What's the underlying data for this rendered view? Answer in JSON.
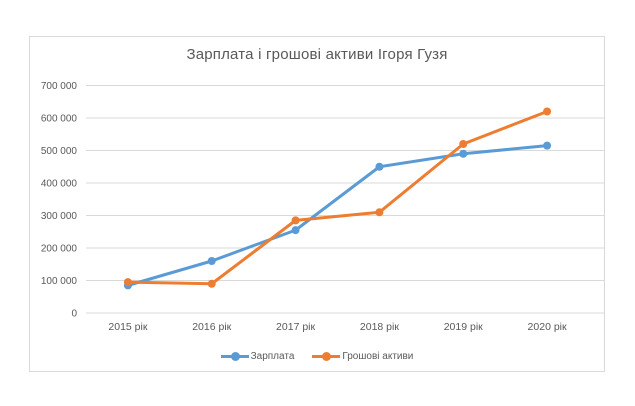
{
  "chart_data": {
    "type": "line",
    "title": "Зарплата і грошові активи Ігоря Гузя",
    "categories": [
      "2015 рік",
      "2016 рік",
      "2017 рік",
      "2018 рік",
      "2019 рік",
      "2020 рік"
    ],
    "series": [
      {
        "name": "Зарплата",
        "color": "#5B9BD5",
        "values": [
          85000,
          160000,
          255000,
          450000,
          490000,
          515000
        ]
      },
      {
        "name": "Грошові активи",
        "color": "#ED7D31",
        "values": [
          95000,
          90000,
          285000,
          310000,
          520000,
          620000
        ]
      }
    ],
    "xlabel": "",
    "ylabel": "",
    "ylim": [
      0,
      700000
    ],
    "ytick_step": 100000,
    "ytick_labels": [
      "0",
      "100 000",
      "200 000",
      "300 000",
      "400 000",
      "500 000",
      "600 000",
      "700 000"
    ],
    "grid": "horizontal",
    "legend_position": "bottom",
    "colors": {
      "grid": "#D9D9D9",
      "frame_border": "#D9D9D9",
      "text": "#595959",
      "background": "#FFFFFF"
    }
  }
}
